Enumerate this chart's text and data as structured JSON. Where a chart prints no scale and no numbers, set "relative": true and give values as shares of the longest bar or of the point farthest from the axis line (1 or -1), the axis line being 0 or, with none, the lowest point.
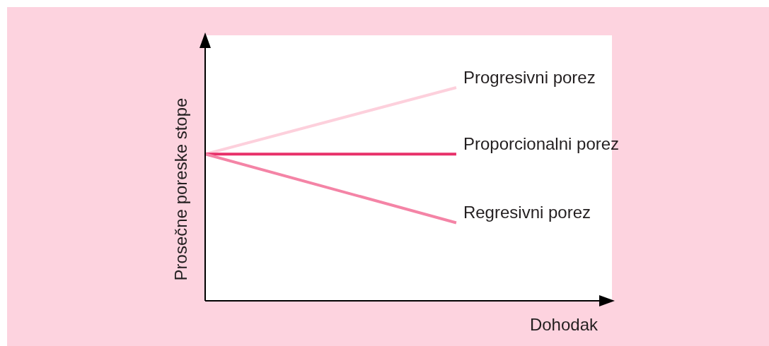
{
  "chart_data": {
    "type": "line",
    "relative": true,
    "xlabel": "Dohodak",
    "ylabel": "Prosečne poreske stope",
    "categories": [
      null,
      null
    ],
    "series": [
      {
        "name": "Progresivni porez",
        "color": "#fdd0dc",
        "values": [
          0.688,
          1
        ]
      },
      {
        "name": "Proporcionalni porez",
        "color": "#e8306a",
        "values": [
          0.688,
          0.688
        ]
      },
      {
        "name": "Regresivni porez",
        "color": "#f484a6",
        "values": [
          0.688,
          0.366
        ]
      }
    ],
    "marker": "none",
    "line_style": "solid"
  }
}
